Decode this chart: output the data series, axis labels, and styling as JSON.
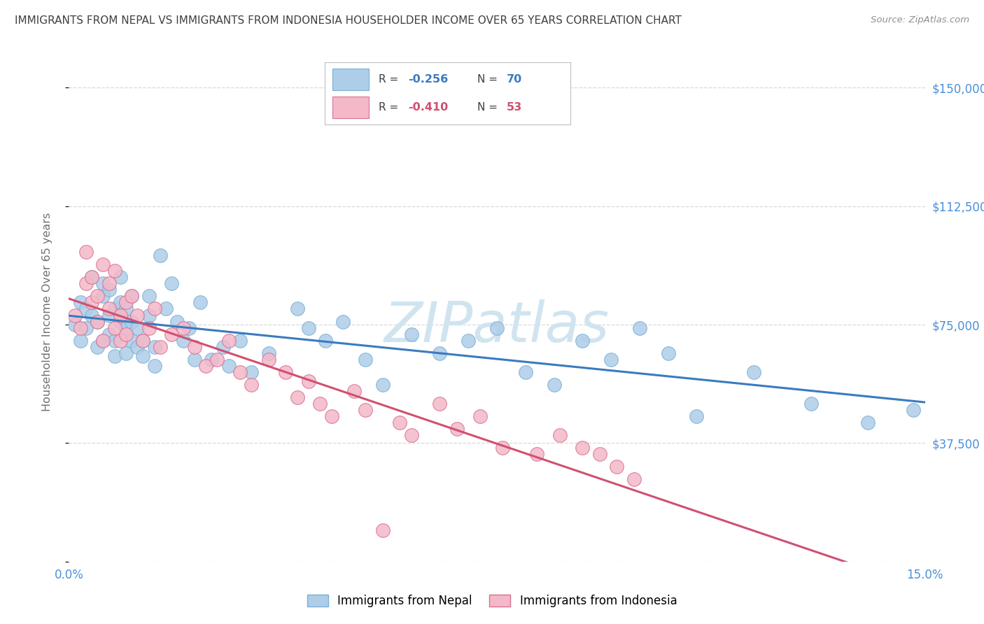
{
  "title": "IMMIGRANTS FROM NEPAL VS IMMIGRANTS FROM INDONESIA HOUSEHOLDER INCOME OVER 65 YEARS CORRELATION CHART",
  "source": "Source: ZipAtlas.com",
  "ylabel_label": "Householder Income Over 65 years",
  "ylabel_ticks": [
    0,
    37500,
    75000,
    112500,
    150000
  ],
  "ylabel_tick_labels": [
    "",
    "$37,500",
    "$75,000",
    "$112,500",
    "$150,000"
  ],
  "xmin": 0.0,
  "xmax": 0.15,
  "ymin": 0,
  "ymax": 158000,
  "nepal_R": -0.256,
  "nepal_N": 70,
  "indonesia_R": -0.41,
  "indonesia_N": 53,
  "nepal_color": "#aecde8",
  "nepal_edge_color": "#7ab0d4",
  "indonesia_color": "#f4b8c8",
  "indonesia_edge_color": "#d87090",
  "nepal_line_color": "#3a7bbf",
  "indonesia_line_color": "#d05070",
  "watermark_color": "#d0e4f0",
  "title_color": "#404040",
  "axis_label_color": "#707070",
  "right_tick_color": "#4a90d9",
  "grid_color": "#d8d8d8",
  "nepal_scatter_x": [
    0.001,
    0.002,
    0.002,
    0.003,
    0.003,
    0.004,
    0.004,
    0.005,
    0.005,
    0.006,
    0.006,
    0.006,
    0.007,
    0.007,
    0.007,
    0.008,
    0.008,
    0.008,
    0.009,
    0.009,
    0.009,
    0.01,
    0.01,
    0.01,
    0.011,
    0.011,
    0.011,
    0.012,
    0.012,
    0.013,
    0.013,
    0.014,
    0.014,
    0.015,
    0.015,
    0.016,
    0.017,
    0.018,
    0.019,
    0.02,
    0.021,
    0.022,
    0.023,
    0.025,
    0.027,
    0.028,
    0.03,
    0.032,
    0.035,
    0.04,
    0.042,
    0.045,
    0.048,
    0.052,
    0.055,
    0.06,
    0.065,
    0.07,
    0.075,
    0.08,
    0.085,
    0.09,
    0.095,
    0.1,
    0.105,
    0.11,
    0.12,
    0.13,
    0.14,
    0.148
  ],
  "nepal_scatter_y": [
    75000,
    70000,
    82000,
    74000,
    80000,
    78000,
    90000,
    68000,
    76000,
    70000,
    84000,
    88000,
    72000,
    78000,
    86000,
    70000,
    65000,
    80000,
    76000,
    82000,
    90000,
    66000,
    74000,
    80000,
    70000,
    76000,
    84000,
    68000,
    74000,
    70000,
    65000,
    78000,
    84000,
    68000,
    62000,
    97000,
    80000,
    88000,
    76000,
    70000,
    74000,
    64000,
    82000,
    64000,
    68000,
    62000,
    70000,
    60000,
    66000,
    80000,
    74000,
    70000,
    76000,
    64000,
    56000,
    72000,
    66000,
    70000,
    74000,
    60000,
    56000,
    70000,
    64000,
    74000,
    66000,
    46000,
    60000,
    50000,
    44000,
    48000
  ],
  "indonesia_scatter_x": [
    0.001,
    0.002,
    0.003,
    0.003,
    0.004,
    0.004,
    0.005,
    0.005,
    0.006,
    0.006,
    0.007,
    0.007,
    0.008,
    0.008,
    0.009,
    0.009,
    0.01,
    0.01,
    0.011,
    0.012,
    0.013,
    0.014,
    0.015,
    0.016,
    0.018,
    0.02,
    0.022,
    0.024,
    0.026,
    0.028,
    0.03,
    0.032,
    0.035,
    0.038,
    0.04,
    0.042,
    0.044,
    0.046,
    0.05,
    0.052,
    0.055,
    0.058,
    0.06,
    0.065,
    0.068,
    0.072,
    0.076,
    0.082,
    0.086,
    0.09,
    0.093,
    0.096,
    0.099
  ],
  "indonesia_scatter_y": [
    78000,
    74000,
    88000,
    98000,
    82000,
    90000,
    76000,
    84000,
    94000,
    70000,
    80000,
    88000,
    74000,
    92000,
    70000,
    78000,
    82000,
    72000,
    84000,
    78000,
    70000,
    74000,
    80000,
    68000,
    72000,
    74000,
    68000,
    62000,
    64000,
    70000,
    60000,
    56000,
    64000,
    60000,
    52000,
    57000,
    50000,
    46000,
    54000,
    48000,
    10000,
    44000,
    40000,
    50000,
    42000,
    46000,
    36000,
    34000,
    40000,
    36000,
    34000,
    30000,
    26000
  ]
}
